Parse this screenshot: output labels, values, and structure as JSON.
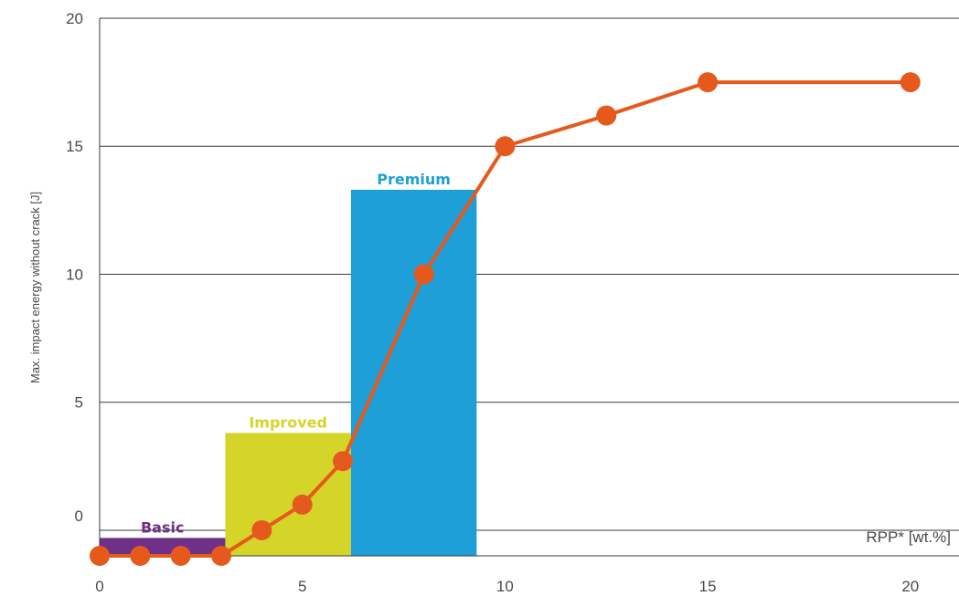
{
  "chart_data": {
    "type": "line",
    "title": "",
    "xlabel": "RPP* [wt.%]",
    "ylabel": "Max. impact energy without crack [J]",
    "xlim": [
      0,
      21.2
    ],
    "ylim": [
      -1,
      20
    ],
    "x_ticks": [
      "0",
      "5",
      "10",
      "15",
      "20"
    ],
    "y_ticks": [
      "0",
      "5",
      "10",
      "15",
      "20"
    ],
    "grid": true,
    "series": [
      {
        "color": "#e55a1c",
        "x": [
          0,
          1,
          2,
          3,
          4,
          5,
          6,
          8,
          10,
          12.5,
          15,
          20
        ],
        "y": [
          -1,
          -1,
          -1,
          -1,
          0,
          1,
          2.7,
          10,
          15,
          16.2,
          17.5,
          17.5
        ]
      }
    ],
    "bands": [
      {
        "label": "Basic",
        "x0": 0,
        "x1": 3.1,
        "y": -0.3,
        "color": "#6e3187"
      },
      {
        "label": "Improved",
        "x0": 3.1,
        "x1": 6.2,
        "y": 3.8,
        "color": "#d5d529"
      },
      {
        "label": "Premium",
        "x0": 6.2,
        "x1": 9.3,
        "y": 13.3,
        "color": "#1e9fd8"
      }
    ]
  }
}
